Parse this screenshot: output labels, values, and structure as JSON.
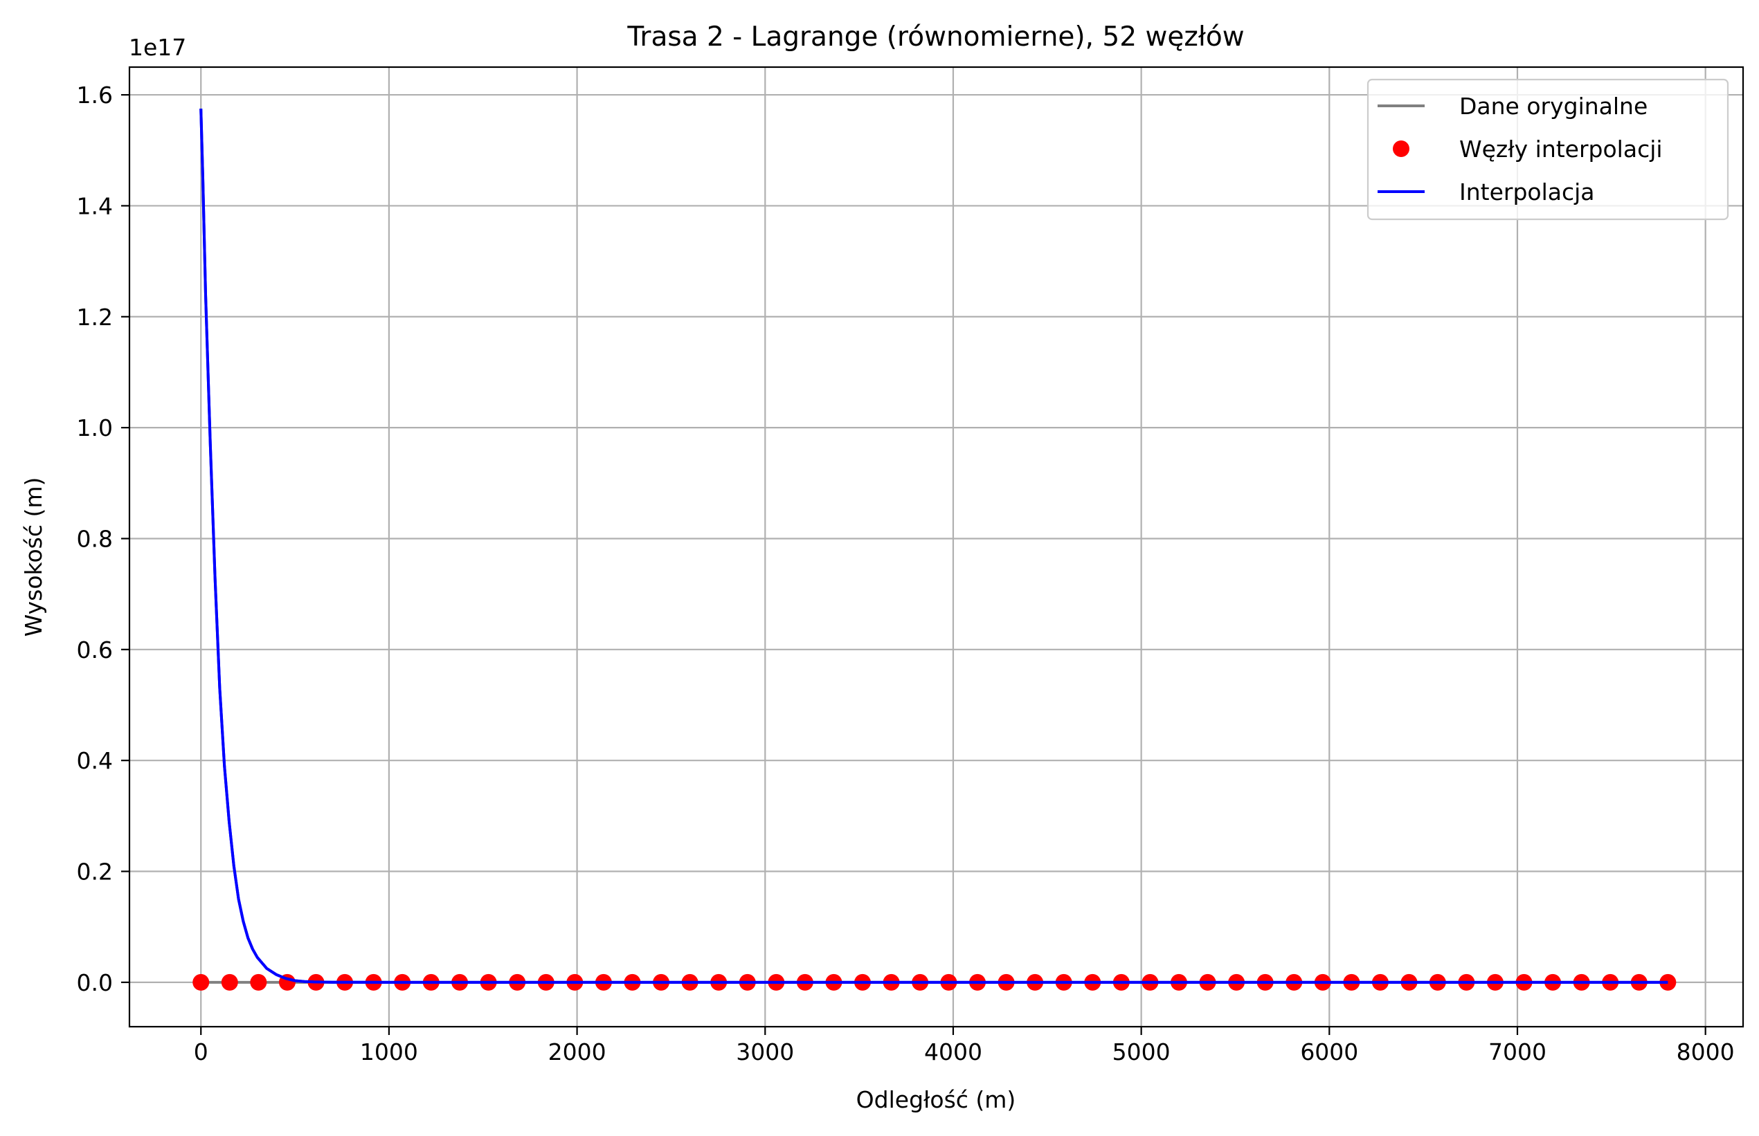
{
  "chart_data": {
    "type": "line",
    "title": "Trasa 2 - Lagrange (równomierne), 52 węzłów",
    "xlabel": "Odległość (m)",
    "ylabel": "Wysokość (m)",
    "y_offset_text": "1e17",
    "y_scale_factor": 1e+17,
    "xlim": [
      -380,
      8200
    ],
    "ylim": [
      -0.08,
      1.65
    ],
    "x_ticks": [
      0,
      1000,
      2000,
      3000,
      4000,
      5000,
      6000,
      7000,
      8000
    ],
    "x_tick_labels": [
      "0",
      "1000",
      "2000",
      "3000",
      "4000",
      "5000",
      "6000",
      "7000",
      "8000"
    ],
    "y_ticks": [
      0.0,
      0.2,
      0.4,
      0.6,
      0.8,
      1.0,
      1.2,
      1.4,
      1.6
    ],
    "y_tick_labels": [
      "0.0",
      "0.2",
      "0.4",
      "0.6",
      "0.8",
      "1.0",
      "1.2",
      "1.4",
      "1.6"
    ],
    "grid": true,
    "legend_position": "top-right",
    "series": [
      {
        "name": "Dane oryginalne",
        "kind": "line",
        "color": "#808080",
        "x": [
          0,
          7800
        ],
        "y": [
          0,
          0
        ]
      },
      {
        "name": "Węzły interpolacji",
        "kind": "markers",
        "color": "#ff0000",
        "x": [
          0,
          153,
          306,
          459,
          612,
          765,
          918,
          1071,
          1224,
          1376,
          1529,
          1682,
          1835,
          1988,
          2141,
          2294,
          2447,
          2600,
          2753,
          2906,
          3059,
          3212,
          3365,
          3518,
          3671,
          3824,
          3976,
          4129,
          4282,
          4435,
          4588,
          4741,
          4894,
          5047,
          5200,
          5353,
          5506,
          5659,
          5812,
          5965,
          6118,
          6271,
          6424,
          6576,
          6729,
          6882,
          7035,
          7188,
          7341,
          7494,
          7647,
          7800
        ],
        "y": [
          0,
          0,
          0,
          0,
          0,
          0,
          0,
          0,
          0,
          0,
          0,
          0,
          0,
          0,
          0,
          0,
          0,
          0,
          0,
          0,
          0,
          0,
          0,
          0,
          0,
          0,
          0,
          0,
          0,
          0,
          0,
          0,
          0,
          0,
          0,
          0,
          0,
          0,
          0,
          0,
          0,
          0,
          0,
          0,
          0,
          0,
          0,
          0,
          0,
          0,
          0,
          0
        ]
      },
      {
        "name": "Interpolacja",
        "kind": "line",
        "color": "#0000ff",
        "x": [
          0,
          10,
          25,
          50,
          75,
          100,
          125,
          150,
          175,
          200,
          225,
          250,
          275,
          300,
          350,
          400,
          450,
          500,
          550,
          600,
          700,
          800,
          1000,
          2000,
          3000,
          4000,
          5000,
          6000,
          7000,
          7800
        ],
        "y": [
          1.575,
          1.45,
          1.24,
          0.97,
          0.73,
          0.53,
          0.39,
          0.29,
          0.21,
          0.15,
          0.11,
          0.08,
          0.06,
          0.045,
          0.025,
          0.014,
          0.007,
          0.003,
          0.0015,
          0.0007,
          0.0002,
          5e-05,
          0,
          0,
          0,
          0,
          0,
          0,
          0,
          0
        ]
      }
    ]
  }
}
